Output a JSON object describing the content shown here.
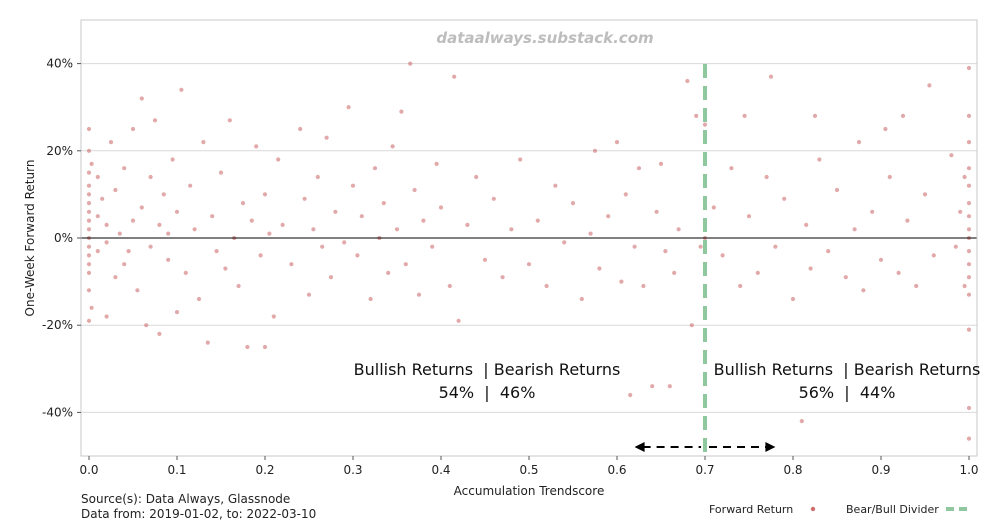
{
  "watermark": "dataalways.substack.com",
  "footer": {
    "source": "Source(s): Data Always, Glassnode",
    "range": "Data from: 2019-01-02, to: 2022-03-10"
  },
  "legend": {
    "placement": "bottom-right",
    "entries": [
      "Forward Return",
      "Bear/Bull Divider"
    ]
  },
  "annotations": {
    "left": {
      "header": "Bullish Returns  | Bearish Returns",
      "values": "54%  |  46%"
    },
    "right": {
      "header": "Bullish Returns  | Bearish Returns",
      "values": "56%  |  44%"
    }
  },
  "colors": {
    "points": "#cd6f6f",
    "divider": "#8fc79e",
    "zero_line": "#000000",
    "grid": "#d9d9d9",
    "arrow": "#000000"
  },
  "chart_data": {
    "type": "scatter",
    "xlabel": "Accumulation Trendscore",
    "ylabel": "One-Week Forward Return",
    "xlim": [
      0,
      1
    ],
    "ylim": [
      -50,
      50
    ],
    "x_ticks": [
      0.0,
      0.1,
      0.2,
      0.3,
      0.4,
      0.5,
      0.6,
      0.7,
      0.8,
      0.9,
      1.0
    ],
    "x_tick_labels": [
      "0.0",
      "0.1",
      "0.2",
      "0.3",
      "0.4",
      "0.5",
      "0.6",
      "0.7",
      "0.8",
      "0.9",
      "1.0"
    ],
    "y_ticks": [
      -40,
      -20,
      0,
      20,
      40
    ],
    "y_tick_labels": [
      "-40%",
      "-20%",
      "0%",
      "20%",
      "40%"
    ],
    "grid": "horizontal",
    "divider_x": 0.7,
    "arrow_range": [
      0.62,
      0.78
    ],
    "series": [
      {
        "name": "Forward Return",
        "points": [
          [
            0.0,
            25
          ],
          [
            0.0,
            20
          ],
          [
            0.0,
            15
          ],
          [
            0.0,
            12
          ],
          [
            0.0,
            10
          ],
          [
            0.0,
            8
          ],
          [
            0.0,
            6
          ],
          [
            0.0,
            4
          ],
          [
            0.0,
            2
          ],
          [
            0.0,
            0
          ],
          [
            0.0,
            -2
          ],
          [
            0.0,
            -4
          ],
          [
            0.0,
            -6
          ],
          [
            0.0,
            -8
          ],
          [
            0.0,
            -12
          ],
          [
            0.0,
            -19
          ],
          [
            0.003,
            17
          ],
          [
            0.003,
            -16
          ],
          [
            0.01,
            14
          ],
          [
            0.01,
            5
          ],
          [
            0.01,
            -3
          ],
          [
            0.015,
            9
          ],
          [
            0.02,
            -1
          ],
          [
            0.02,
            3
          ],
          [
            0.02,
            -18
          ],
          [
            0.025,
            22
          ],
          [
            0.03,
            -9
          ],
          [
            0.03,
            11
          ],
          [
            0.035,
            1
          ],
          [
            0.04,
            -6
          ],
          [
            0.04,
            16
          ],
          [
            0.045,
            -3
          ],
          [
            0.05,
            25
          ],
          [
            0.05,
            4
          ],
          [
            0.055,
            -12
          ],
          [
            0.06,
            32
          ],
          [
            0.06,
            7
          ],
          [
            0.065,
            -20
          ],
          [
            0.07,
            14
          ],
          [
            0.07,
            -2
          ],
          [
            0.075,
            27
          ],
          [
            0.08,
            3
          ],
          [
            0.08,
            -22
          ],
          [
            0.085,
            10
          ],
          [
            0.09,
            -5
          ],
          [
            0.09,
            1
          ],
          [
            0.095,
            18
          ],
          [
            0.1,
            -17
          ],
          [
            0.1,
            6
          ],
          [
            0.105,
            34
          ],
          [
            0.11,
            -8
          ],
          [
            0.115,
            12
          ],
          [
            0.12,
            2
          ],
          [
            0.125,
            -14
          ],
          [
            0.13,
            22
          ],
          [
            0.135,
            -24
          ],
          [
            0.14,
            5
          ],
          [
            0.145,
            -3
          ],
          [
            0.15,
            15
          ],
          [
            0.155,
            -7
          ],
          [
            0.16,
            27
          ],
          [
            0.165,
            0
          ],
          [
            0.17,
            -11
          ],
          [
            0.175,
            8
          ],
          [
            0.18,
            -25
          ],
          [
            0.185,
            4
          ],
          [
            0.19,
            21
          ],
          [
            0.195,
            -4
          ],
          [
            0.2,
            -25
          ],
          [
            0.2,
            10
          ],
          [
            0.205,
            1
          ],
          [
            0.21,
            -18
          ],
          [
            0.215,
            18
          ],
          [
            0.22,
            3
          ],
          [
            0.23,
            -6
          ],
          [
            0.24,
            25
          ],
          [
            0.245,
            9
          ],
          [
            0.25,
            -13
          ],
          [
            0.255,
            2
          ],
          [
            0.26,
            14
          ],
          [
            0.265,
            -2
          ],
          [
            0.27,
            23
          ],
          [
            0.275,
            -9
          ],
          [
            0.28,
            6
          ],
          [
            0.29,
            -1
          ],
          [
            0.295,
            30
          ],
          [
            0.3,
            12
          ],
          [
            0.305,
            -4
          ],
          [
            0.31,
            5
          ],
          [
            0.32,
            -14
          ],
          [
            0.325,
            16
          ],
          [
            0.33,
            0
          ],
          [
            0.335,
            8
          ],
          [
            0.34,
            -8
          ],
          [
            0.345,
            21
          ],
          [
            0.35,
            2
          ],
          [
            0.355,
            29
          ],
          [
            0.36,
            -6
          ],
          [
            0.365,
            40
          ],
          [
            0.37,
            11
          ],
          [
            0.375,
            -13
          ],
          [
            0.38,
            4
          ],
          [
            0.39,
            -2
          ],
          [
            0.395,
            17
          ],
          [
            0.4,
            7
          ],
          [
            0.41,
            -11
          ],
          [
            0.415,
            37
          ],
          [
            0.42,
            -19
          ],
          [
            0.43,
            3
          ],
          [
            0.44,
            14
          ],
          [
            0.45,
            -5
          ],
          [
            0.46,
            9
          ],
          [
            0.47,
            -9
          ],
          [
            0.48,
            2
          ],
          [
            0.49,
            18
          ],
          [
            0.5,
            -6
          ],
          [
            0.51,
            4
          ],
          [
            0.52,
            -11
          ],
          [
            0.53,
            12
          ],
          [
            0.54,
            -1
          ],
          [
            0.55,
            8
          ],
          [
            0.56,
            -14
          ],
          [
            0.57,
            1
          ],
          [
            0.575,
            20
          ],
          [
            0.58,
            -7
          ],
          [
            0.59,
            5
          ],
          [
            0.6,
            22
          ],
          [
            0.605,
            -10
          ],
          [
            0.61,
            10
          ],
          [
            0.615,
            -36
          ],
          [
            0.62,
            -2
          ],
          [
            0.625,
            16
          ],
          [
            0.63,
            -11
          ],
          [
            0.64,
            -34
          ],
          [
            0.645,
            6
          ],
          [
            0.65,
            17
          ],
          [
            0.655,
            -3
          ],
          [
            0.66,
            -34
          ],
          [
            0.665,
            -8
          ],
          [
            0.67,
            2
          ],
          [
            0.68,
            36
          ],
          [
            0.685,
            -20
          ],
          [
            0.69,
            28
          ],
          [
            0.695,
            -2
          ],
          [
            0.7,
            26
          ],
          [
            0.7,
            0
          ],
          [
            0.7,
            -33
          ],
          [
            0.71,
            7
          ],
          [
            0.72,
            -4
          ],
          [
            0.73,
            16
          ],
          [
            0.74,
            -11
          ],
          [
            0.745,
            28
          ],
          [
            0.75,
            5
          ],
          [
            0.76,
            -8
          ],
          [
            0.77,
            14
          ],
          [
            0.775,
            37
          ],
          [
            0.78,
            -2
          ],
          [
            0.79,
            9
          ],
          [
            0.8,
            -14
          ],
          [
            0.81,
            -42
          ],
          [
            0.815,
            3
          ],
          [
            0.82,
            -7
          ],
          [
            0.825,
            28
          ],
          [
            0.83,
            18
          ],
          [
            0.84,
            -3
          ],
          [
            0.85,
            11
          ],
          [
            0.86,
            -9
          ],
          [
            0.87,
            2
          ],
          [
            0.875,
            22
          ],
          [
            0.88,
            -12
          ],
          [
            0.89,
            6
          ],
          [
            0.9,
            -5
          ],
          [
            0.905,
            25
          ],
          [
            0.91,
            14
          ],
          [
            0.92,
            -8
          ],
          [
            0.925,
            28
          ],
          [
            0.93,
            4
          ],
          [
            0.94,
            -11
          ],
          [
            0.95,
            10
          ],
          [
            0.955,
            35
          ],
          [
            0.96,
            -4
          ],
          [
            1.0,
            39
          ],
          [
            1.0,
            28
          ],
          [
            1.0,
            22
          ],
          [
            1.0,
            16
          ],
          [
            1.0,
            12
          ],
          [
            1.0,
            8
          ],
          [
            1.0,
            5
          ],
          [
            1.0,
            2
          ],
          [
            1.0,
            0
          ],
          [
            1.0,
            -3
          ],
          [
            1.0,
            -6
          ],
          [
            1.0,
            -9
          ],
          [
            1.0,
            -13
          ],
          [
            1.0,
            -21
          ],
          [
            1.0,
            -39
          ],
          [
            1.0,
            -46
          ],
          [
            0.995,
            14
          ],
          [
            0.995,
            -11
          ],
          [
            0.99,
            6
          ],
          [
            0.985,
            -2
          ],
          [
            0.98,
            19
          ]
        ]
      }
    ]
  }
}
